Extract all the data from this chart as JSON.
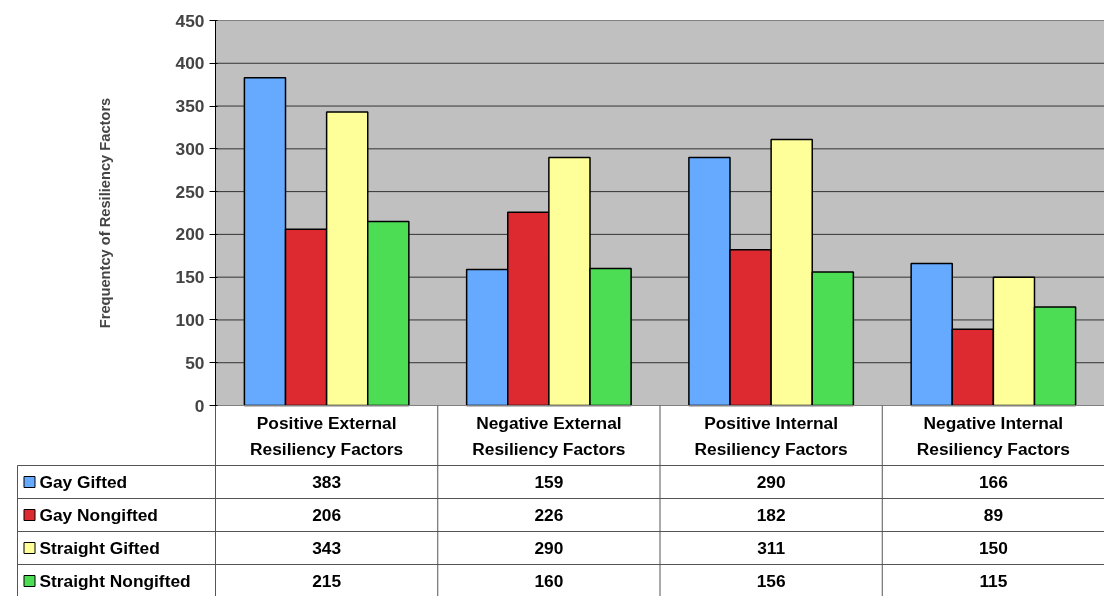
{
  "chart_data": {
    "type": "bar",
    "ylabel": "Frequentcy of Resiliency Factors",
    "categories": [
      "Positive External\nResiliency Factors",
      "Negative External\nResiliency Factors",
      "Positive Internal\nResiliency Factors",
      "Negative Internal\nResiliency Factors"
    ],
    "series": [
      {
        "name": "Gay Gifted",
        "color": "#66aaff",
        "values": [
          383,
          159,
          290,
          166
        ]
      },
      {
        "name": "Gay Nongifted",
        "color": "#dd2a30",
        "values": [
          206,
          226,
          182,
          89
        ]
      },
      {
        "name": "Straight Gifted",
        "color": "#ffff99",
        "values": [
          343,
          290,
          311,
          150
        ]
      },
      {
        "name": "Straight Nongifted",
        "color": "#4cdd55",
        "values": [
          215,
          160,
          156,
          115
        ]
      }
    ],
    "ylim": [
      0,
      450
    ],
    "yticks": [
      0,
      50,
      100,
      150,
      200,
      250,
      300,
      350,
      400,
      450
    ],
    "grid": "y",
    "legend": "bottom",
    "data_labels": true
  }
}
